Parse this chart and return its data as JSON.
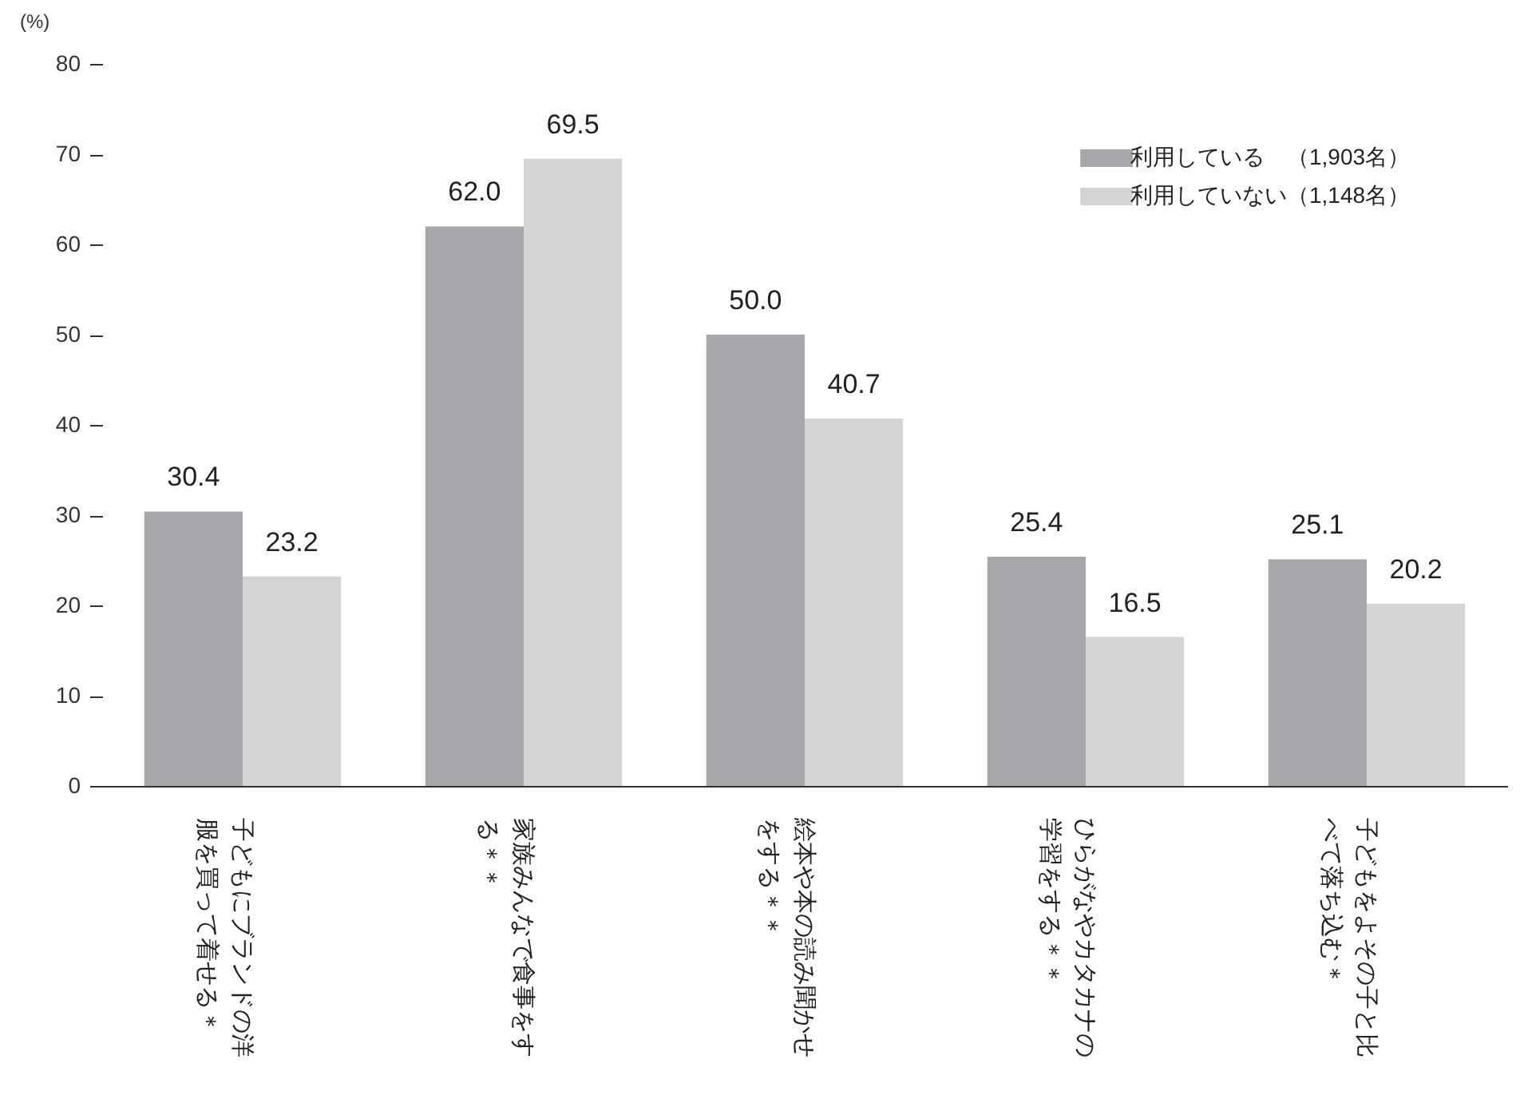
{
  "chart_data": {
    "type": "bar",
    "ylabel": "(%)",
    "categories": [
      "子どもにブランドの洋服を買って着せる＊",
      "家族みんなで食事をする＊＊",
      "絵本や本の読み聞かせをする＊＊",
      "ひらがなやカタカナの学習をする＊＊",
      "子どもをよその子と比べて落ち込む＊"
    ],
    "series": [
      {
        "name": "利用している　（1,903名）",
        "color": "#a7a8ac",
        "values": [
          30.4,
          62.0,
          50.0,
          25.4,
          25.1
        ],
        "value_labels": [
          "30.4",
          "62.0",
          "50.0",
          "25.4",
          "25.1"
        ]
      },
      {
        "name": "利用していない（1,148名）",
        "color": "#d3d4d6",
        "values": [
          23.2,
          69.5,
          40.7,
          16.5,
          20.2
        ],
        "value_labels": [
          "23.2",
          "69.5",
          "40.7",
          "16.5",
          "20.2"
        ]
      }
    ],
    "ylim": [
      0,
      80
    ],
    "yticks": [
      0,
      10,
      20,
      30,
      40,
      50,
      60,
      70,
      80
    ],
    "grid": false,
    "legend": "top right"
  }
}
